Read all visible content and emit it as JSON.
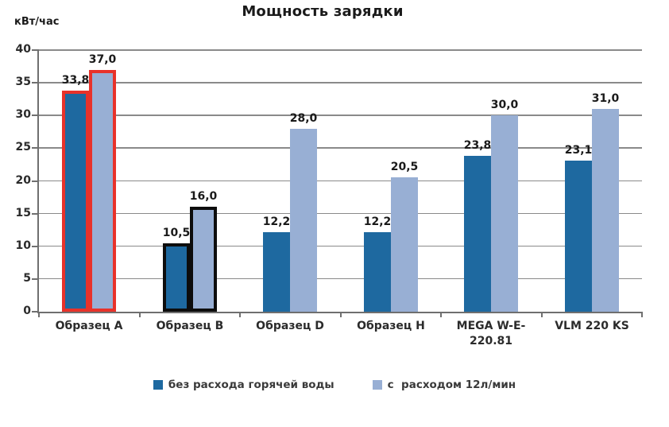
{
  "chart_data": {
    "type": "bar",
    "title": "Мощность зарядки",
    "ylabel": "кВт/час",
    "ylim": [
      0,
      40
    ],
    "ytick_step": 5,
    "ytick_labels": [
      "0",
      "5",
      "10",
      "15",
      "20",
      "25",
      "30",
      "35",
      "40"
    ],
    "grid": true,
    "legend_position": "bottom",
    "categories": [
      "Образец A",
      "Образец B",
      "Образец D",
      "Образец H",
      "MEGA W-E-\n220.81",
      "VLM 220 KS"
    ],
    "series": [
      {
        "name": "без расхода горячей воды",
        "color": "#1e69a0",
        "values": [
          33.8,
          10.5,
          12.2,
          12.2,
          23.8,
          23.1
        ]
      },
      {
        "name": "с  расходом 12л/мин",
        "color": "#98afd4",
        "values": [
          37.0,
          16.0,
          28.0,
          20.5,
          30.0,
          31.0
        ]
      }
    ],
    "data_label_decimal_separator": ",",
    "group_outlines": [
      {
        "category_index": 0,
        "color": "#e8322a"
      },
      {
        "category_index": 1,
        "color": "#0d0d0d"
      }
    ]
  }
}
